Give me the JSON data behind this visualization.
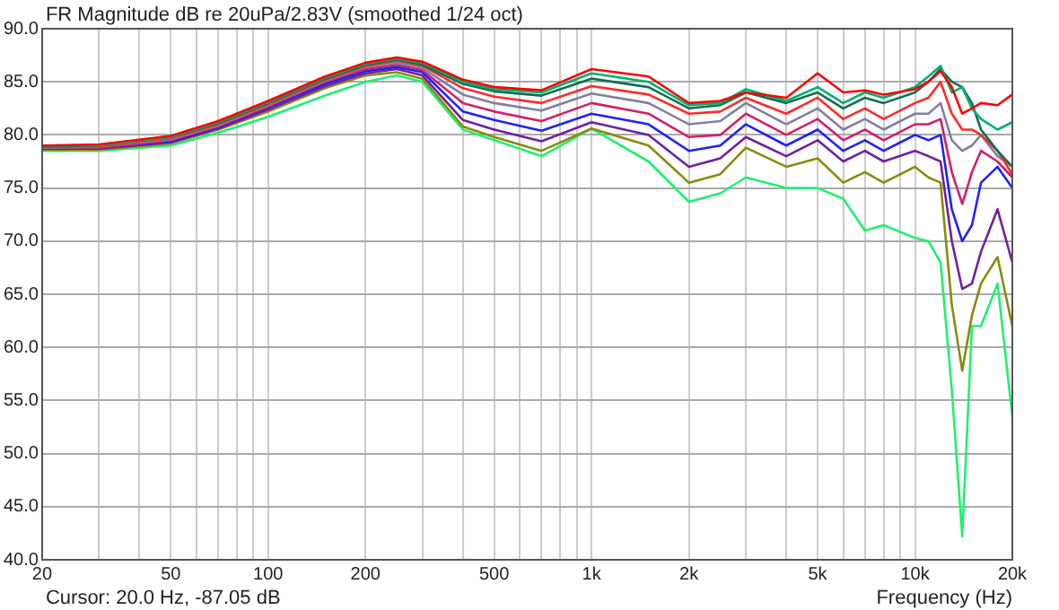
{
  "chart_data": {
    "type": "line",
    "title": "FR Magnitude dB re 20uPa/2.83V (smoothed 1/24 oct)",
    "xlabel": "Frequency (Hz)",
    "annotations": [
      "Cursor: 20.0 Hz, -87.05 dB"
    ],
    "log": "x",
    "grid": true,
    "marker": "none",
    "line_style": "solid",
    "xlim": [
      20,
      20000
    ],
    "ylim": [
      40,
      90
    ],
    "xticks": [
      20,
      {
        "value": 30,
        "label": null
      },
      {
        "value": 40,
        "label": null
      },
      50,
      {
        "value": 60,
        "label": null
      },
      {
        "value": 70,
        "label": null
      },
      {
        "value": 80,
        "label": null
      },
      {
        "value": 90,
        "label": null
      },
      100,
      200,
      {
        "value": 300,
        "label": null
      },
      {
        "value": 400,
        "label": null
      },
      500,
      {
        "value": 600,
        "label": null
      },
      {
        "value": 700,
        "label": null
      },
      {
        "value": 800,
        "label": null
      },
      {
        "value": 900,
        "label": null
      },
      {
        "value": 1000,
        "label": "1k"
      },
      {
        "value": 2000,
        "label": "2k"
      },
      {
        "value": 3000,
        "label": null
      },
      {
        "value": 4000,
        "label": null
      },
      {
        "value": 5000,
        "label": "5k"
      },
      {
        "value": 6000,
        "label": null
      },
      {
        "value": 7000,
        "label": null
      },
      {
        "value": 8000,
        "label": null
      },
      {
        "value": 9000,
        "label": null
      },
      {
        "value": 10000,
        "label": "10k"
      },
      {
        "value": 20000,
        "label": "20k"
      }
    ],
    "yticks": [
      {
        "value": 40,
        "label": "40.0"
      },
      {
        "value": 45,
        "label": "45.0"
      },
      {
        "value": 50,
        "label": "50.0"
      },
      {
        "value": 55,
        "label": "55.0"
      },
      {
        "value": 60,
        "label": "60.0"
      },
      {
        "value": 65,
        "label": "65.0"
      },
      {
        "value": 70,
        "label": "70.0"
      },
      {
        "value": 75,
        "label": "75.0"
      },
      {
        "value": 80,
        "label": "80.0"
      },
      {
        "value": 85,
        "label": "85.0"
      },
      {
        "value": 90,
        "label": "90.0"
      }
    ],
    "x": [
      20,
      30,
      50,
      70,
      100,
      150,
      200,
      250,
      300,
      400,
      500,
      700,
      1000,
      1500,
      2000,
      2500,
      3000,
      4000,
      5000,
      6000,
      7000,
      8000,
      10000,
      11000,
      12000,
      13000,
      14000,
      15000,
      16000,
      18000,
      20000
    ],
    "series": [
      {
        "color": "#ff0000",
        "values": [
          79.0,
          79.1,
          79.9,
          81.3,
          83.2,
          85.5,
          86.8,
          87.3,
          86.9,
          85.2,
          84.5,
          84.2,
          86.2,
          85.5,
          83.0,
          83.2,
          84.0,
          83.5,
          85.8,
          84.0,
          84.2,
          83.8,
          84.3,
          85.0,
          86.0,
          84.5,
          82.0,
          82.5,
          83.0,
          82.8,
          83.8
        ]
      },
      {
        "color": "#00b070",
        "values": [
          79.0,
          79.0,
          79.8,
          81.2,
          83.1,
          85.4,
          86.7,
          87.2,
          86.8,
          85.0,
          84.3,
          84.0,
          85.8,
          85.0,
          82.8,
          83.0,
          84.3,
          83.2,
          84.5,
          83.0,
          84.0,
          83.5,
          84.5,
          85.5,
          86.5,
          84.0,
          84.5,
          82.5,
          81.5,
          80.5,
          81.2
        ]
      },
      {
        "color": "#107050",
        "values": [
          78.9,
          79.0,
          79.8,
          81.1,
          83.0,
          85.3,
          86.6,
          87.1,
          86.6,
          84.8,
          84.1,
          83.7,
          85.3,
          84.5,
          82.5,
          82.8,
          84.0,
          83.0,
          84.0,
          82.5,
          83.5,
          83.0,
          84.0,
          85.0,
          86.2,
          85.0,
          84.5,
          83.0,
          80.5,
          78.5,
          77.0
        ]
      },
      {
        "color": "#ff2a2a",
        "values": [
          78.9,
          78.9,
          79.7,
          81.0,
          82.9,
          85.2,
          86.5,
          87.0,
          86.5,
          84.4,
          83.6,
          83.0,
          84.6,
          83.8,
          82.0,
          82.2,
          83.5,
          82.0,
          83.5,
          81.5,
          82.5,
          81.5,
          83.0,
          83.5,
          85.0,
          82.0,
          80.5,
          80.5,
          80.0,
          78.5,
          76.3
        ]
      },
      {
        "color": "#8080a0",
        "values": [
          78.8,
          78.9,
          79.6,
          80.9,
          82.8,
          85.1,
          86.4,
          86.8,
          86.3,
          83.8,
          83.0,
          82.3,
          83.9,
          83.0,
          81.0,
          81.3,
          83.0,
          81.0,
          82.5,
          80.5,
          81.5,
          80.5,
          82.0,
          82.0,
          83.0,
          79.5,
          78.5,
          79.0,
          80.0,
          78.0,
          77.0
        ]
      },
      {
        "color": "#d0206a",
        "values": [
          78.8,
          78.8,
          79.5,
          80.8,
          82.7,
          85.0,
          86.2,
          86.6,
          86.1,
          83.0,
          82.2,
          81.3,
          83.0,
          82.0,
          79.8,
          80.0,
          82.0,
          80.0,
          81.5,
          79.5,
          80.5,
          79.5,
          81.0,
          81.0,
          81.5,
          76.5,
          73.5,
          76.5,
          78.5,
          77.5,
          76.0
        ]
      },
      {
        "color": "#2020ff",
        "values": [
          78.7,
          78.8,
          79.4,
          80.7,
          82.6,
          84.8,
          86.0,
          86.4,
          85.9,
          82.2,
          81.4,
          80.4,
          82.0,
          81.0,
          78.5,
          79.0,
          81.0,
          79.0,
          80.5,
          78.5,
          79.5,
          78.5,
          80.0,
          79.5,
          80.0,
          73.0,
          70.0,
          71.5,
          75.5,
          77.0,
          75.0
        ]
      },
      {
        "color": "#7020a0",
        "values": [
          78.7,
          78.7,
          79.3,
          80.6,
          82.4,
          84.6,
          85.8,
          86.2,
          85.6,
          81.4,
          80.5,
          79.4,
          81.2,
          80.0,
          77.0,
          77.8,
          79.8,
          78.0,
          79.5,
          77.5,
          78.5,
          77.5,
          78.5,
          78.0,
          77.5,
          70.0,
          65.5,
          66.0,
          69.0,
          73.0,
          68.0
        ]
      },
      {
        "color": "#8a8a10",
        "values": [
          78.6,
          78.6,
          79.2,
          80.5,
          82.2,
          84.4,
          85.6,
          85.9,
          85.3,
          80.8,
          79.8,
          78.5,
          80.6,
          79.0,
          75.5,
          76.3,
          78.8,
          77.0,
          77.8,
          75.5,
          76.5,
          75.5,
          77.0,
          76.0,
          75.5,
          64.0,
          57.8,
          63.0,
          66.0,
          68.5,
          62.0
        ]
      },
      {
        "color": "#20f070",
        "values": [
          78.5,
          78.5,
          79.0,
          80.2,
          81.7,
          83.7,
          85.0,
          85.6,
          85.0,
          80.5,
          79.5,
          78.0,
          80.6,
          77.5,
          73.7,
          74.5,
          76.0,
          75.0,
          75.0,
          74.0,
          71.0,
          71.5,
          70.3,
          70.0,
          68.0,
          56.0,
          42.2,
          62.0,
          62.0,
          66.0,
          53.5
        ]
      }
    ]
  }
}
